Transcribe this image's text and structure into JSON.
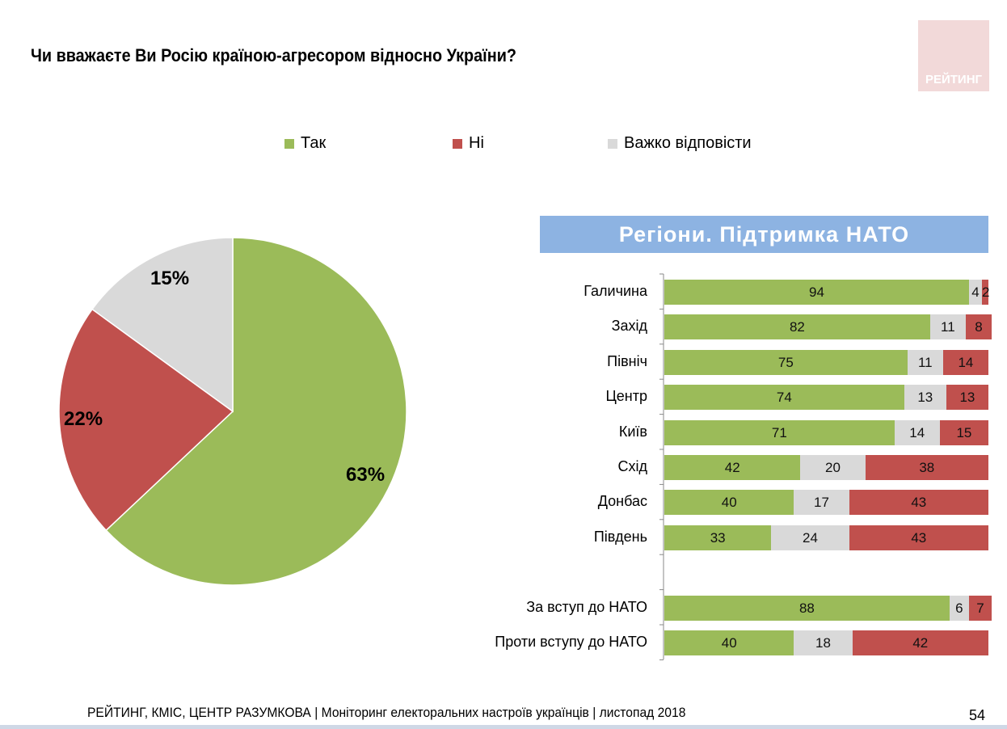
{
  "title": "Чи вважаєте Ви Росію країною-агресором відносно України?",
  "logo_text": "РЕЙТИНГ",
  "colors": {
    "yes": "#9bbb59",
    "no": "#c0504d",
    "hard": "#d9d9d9",
    "banner": "#8db3e2"
  },
  "chart_data": [
    {
      "type": "pie",
      "legend": [
        "Так",
        "Ні",
        "Важко відповісти"
      ],
      "legend_position": "top",
      "slices": [
        {
          "name": "Так",
          "value": 63,
          "label": "63%"
        },
        {
          "name": "Ні",
          "value": 22,
          "label": "22%"
        },
        {
          "name": "Важко відповісти",
          "value": 15,
          "label": "15%"
        }
      ]
    },
    {
      "type": "bar",
      "orientation": "horizontal",
      "stacked": true,
      "title": "Регіони. Підтримка НАТО",
      "categories": [
        "Галичина",
        "Захід",
        "Північ",
        "Центр",
        "Київ",
        "Схід",
        "Донбас",
        "Південь",
        "",
        "За вступ до НАТО",
        "Проти вступу до НАТО"
      ],
      "series": [
        {
          "name": "Так",
          "values": [
            94,
            82,
            75,
            74,
            71,
            42,
            40,
            33,
            null,
            88,
            40
          ]
        },
        {
          "name": "Важко відповісти",
          "values": [
            4,
            11,
            11,
            13,
            14,
            20,
            17,
            24,
            null,
            6,
            18
          ]
        },
        {
          "name": "Ні",
          "values": [
            2,
            8,
            14,
            13,
            15,
            38,
            43,
            43,
            null,
            7,
            42
          ]
        }
      ]
    }
  ],
  "footer": "РЕЙТИНГ, КМІС, ЦЕНТР РАЗУМКОВА |  Моніторинг електоральних настроїв українців | листопад 2018",
  "page_number": "54"
}
